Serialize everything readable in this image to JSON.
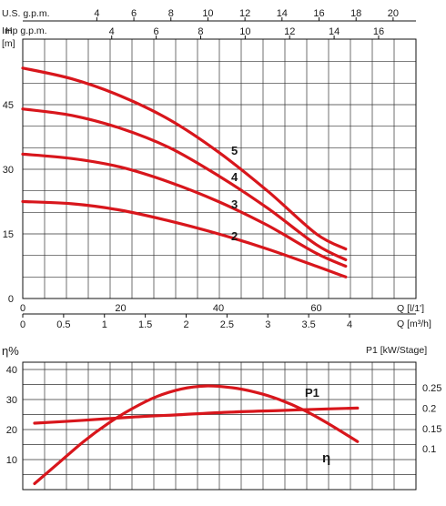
{
  "chart_data": [
    {
      "type": "line",
      "y_axis_title": "H",
      "y_unit": "[m]",
      "top_axis_labels": [
        "U.S. g.p.m.",
        "Imp g.p.m."
      ],
      "bottom_axis_labels": [
        "Q [l/1']",
        "Q [m³/h]"
      ],
      "y_ticks": [
        "0",
        "15",
        "30",
        "45"
      ],
      "x_ticks_lmin": [
        "0",
        "20",
        "40",
        "60"
      ],
      "x_ticks_m3h": [
        "0",
        "0.5",
        "1",
        "1.5",
        "2",
        "2.5",
        "3",
        "3.5",
        "4"
      ],
      "x_ticks_usgpm": [
        "4",
        "6",
        "8",
        "10",
        "12",
        "14",
        "16",
        "18",
        "20"
      ],
      "x_ticks_impgpm": [
        "4",
        "6",
        "8",
        "10",
        "12",
        "14",
        "16"
      ],
      "xlim_lmin": [
        0,
        86
      ],
      "ylim_m": [
        0,
        58
      ],
      "grid": true,
      "series": [
        {
          "name": "5",
          "x": [
            0,
            10,
            20,
            30,
            40,
            50,
            60,
            66
          ],
          "y": [
            53.5,
            51,
            47,
            41.5,
            34,
            25,
            15,
            11.5
          ]
        },
        {
          "name": "4",
          "x": [
            0,
            10,
            20,
            30,
            40,
            50,
            60,
            66
          ],
          "y": [
            44,
            42.5,
            39.5,
            35,
            28.5,
            21,
            12.5,
            9
          ]
        },
        {
          "name": "3",
          "x": [
            0,
            10,
            20,
            30,
            40,
            50,
            60,
            66
          ],
          "y": [
            33.5,
            32.5,
            30.5,
            27,
            22.5,
            17,
            10.5,
            7.5
          ]
        },
        {
          "name": "2",
          "x": [
            0,
            10,
            20,
            30,
            40,
            50,
            60,
            66
          ],
          "y": [
            22.5,
            22,
            20.5,
            18,
            15,
            11.5,
            7.5,
            5
          ]
        }
      ]
    },
    {
      "type": "line",
      "y_axis_title": "η%",
      "y2_axis_title": "P1 [kW/Stage]",
      "y_ticks": [
        "10",
        "20",
        "30",
        "40"
      ],
      "y2_ticks": [
        "0.1",
        "0.15",
        "0.2",
        "0.25"
      ],
      "ylim": [
        0,
        50
      ],
      "y2lim": [
        0,
        0.3
      ],
      "grid": true,
      "series": [
        {
          "name": "η",
          "axis": "left",
          "x": [
            0,
            5,
            10,
            15,
            20,
            25,
            30,
            35,
            40,
            45,
            50,
            55,
            60,
            66
          ],
          "y": [
            2,
            9,
            16,
            22,
            27,
            31,
            33.5,
            34.5,
            34,
            32.5,
            30,
            26.5,
            22,
            16
          ]
        },
        {
          "name": "P1",
          "axis": "right",
          "x": [
            0,
            10,
            20,
            30,
            40,
            50,
            60,
            66
          ],
          "y": [
            0.163,
            0.17,
            0.178,
            0.184,
            0.19,
            0.194,
            0.198,
            0.2
          ]
        }
      ]
    }
  ]
}
